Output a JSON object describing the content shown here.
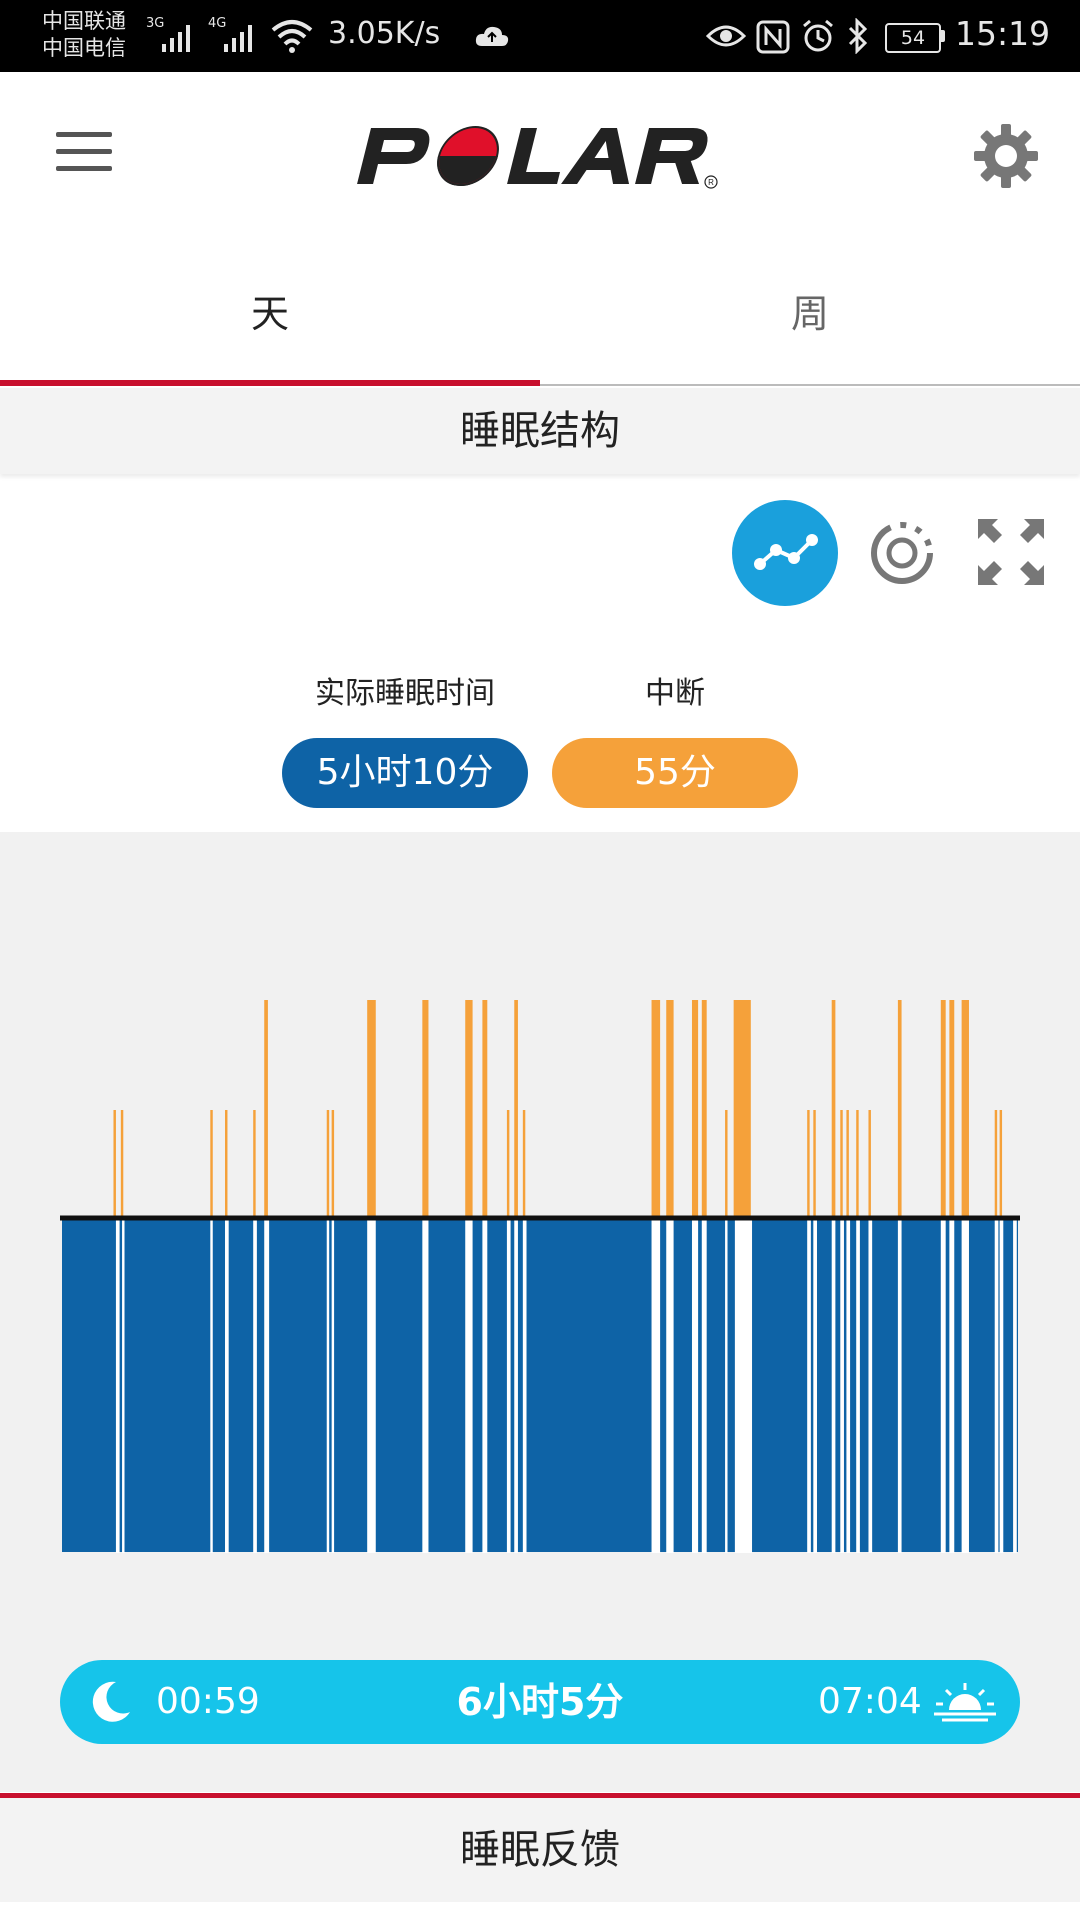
{
  "status_bar": {
    "carrier_1": "中国联通",
    "carrier_2": "中国电信",
    "net_1": "3G",
    "net_2": "4G",
    "speed": "3.05K/s",
    "battery": "54",
    "time": "15:19"
  },
  "header": {
    "logo": "POLAR",
    "menu_icon": "hamburger-menu-icon",
    "settings_icon": "gear-icon"
  },
  "tabs": [
    {
      "label": "天",
      "active": true
    },
    {
      "label": "周",
      "active": false
    }
  ],
  "section_title": "睡眠结构",
  "view_controls": [
    "graph-view-icon",
    "circle-view-icon",
    "fullscreen-icon"
  ],
  "summary": {
    "actual_sleep_label": "实际睡眠时间",
    "actual_sleep_value": "5小时10分",
    "interruption_label": "中断",
    "interruption_value": "55分"
  },
  "chart_data": {
    "type": "bar",
    "x_domain": [
      0,
      780
    ],
    "sleep_color": "#0e63a6",
    "interruption_color": "#f5a13a",
    "interruptions": [
      {
        "x": 42,
        "w": 2,
        "level": 1
      },
      {
        "x": 48,
        "w": 2,
        "level": 1
      },
      {
        "x": 121,
        "w": 2,
        "level": 1
      },
      {
        "x": 133,
        "w": 2,
        "level": 1
      },
      {
        "x": 156,
        "w": 2,
        "level": 1
      },
      {
        "x": 165,
        "w": 3,
        "level": 2
      },
      {
        "x": 216,
        "w": 2,
        "level": 1
      },
      {
        "x": 220,
        "w": 2,
        "level": 1
      },
      {
        "x": 249,
        "w": 7,
        "level": 2
      },
      {
        "x": 294,
        "w": 5,
        "level": 2
      },
      {
        "x": 329,
        "w": 6,
        "level": 2
      },
      {
        "x": 343,
        "w": 4,
        "level": 2
      },
      {
        "x": 363,
        "w": 2,
        "level": 1
      },
      {
        "x": 369,
        "w": 3,
        "level": 2
      },
      {
        "x": 376,
        "w": 2,
        "level": 1
      },
      {
        "x": 481,
        "w": 7,
        "level": 2
      },
      {
        "x": 493,
        "w": 6,
        "level": 2
      },
      {
        "x": 514,
        "w": 5,
        "level": 2
      },
      {
        "x": 522,
        "w": 4,
        "level": 2
      },
      {
        "x": 541,
        "w": 2,
        "level": 1
      },
      {
        "x": 548,
        "w": 14,
        "level": 2
      },
      {
        "x": 608,
        "w": 2,
        "level": 1
      },
      {
        "x": 613,
        "w": 2,
        "level": 1
      },
      {
        "x": 628,
        "w": 3,
        "level": 2
      },
      {
        "x": 635,
        "w": 2,
        "level": 1
      },
      {
        "x": 640,
        "w": 2,
        "level": 1
      },
      {
        "x": 648,
        "w": 2,
        "level": 1
      },
      {
        "x": 658,
        "w": 2,
        "level": 1
      },
      {
        "x": 682,
        "w": 3,
        "level": 2
      },
      {
        "x": 717,
        "w": 4,
        "level": 2
      },
      {
        "x": 724,
        "w": 4,
        "level": 2
      },
      {
        "x": 734,
        "w": 6,
        "level": 2
      },
      {
        "x": 761,
        "w": 2,
        "level": 1
      },
      {
        "x": 765,
        "w": 2,
        "level": 1
      }
    ],
    "sleep_gaps": [
      {
        "x": 44,
        "w": 3
      },
      {
        "x": 49,
        "w": 2
      },
      {
        "x": 121,
        "w": 2
      },
      {
        "x": 133,
        "w": 3
      },
      {
        "x": 156,
        "w": 3
      },
      {
        "x": 165,
        "w": 4
      },
      {
        "x": 216,
        "w": 2
      },
      {
        "x": 220,
        "w": 2
      },
      {
        "x": 249,
        "w": 7
      },
      {
        "x": 294,
        "w": 5
      },
      {
        "x": 329,
        "w": 6
      },
      {
        "x": 343,
        "w": 4
      },
      {
        "x": 363,
        "w": 3
      },
      {
        "x": 369,
        "w": 3
      },
      {
        "x": 376,
        "w": 3
      },
      {
        "x": 481,
        "w": 7
      },
      {
        "x": 493,
        "w": 6
      },
      {
        "x": 514,
        "w": 5
      },
      {
        "x": 522,
        "w": 4
      },
      {
        "x": 541,
        "w": 2
      },
      {
        "x": 549,
        "w": 14
      },
      {
        "x": 608,
        "w": 3
      },
      {
        "x": 613,
        "w": 3
      },
      {
        "x": 628,
        "w": 3
      },
      {
        "x": 635,
        "w": 3
      },
      {
        "x": 640,
        "w": 3
      },
      {
        "x": 648,
        "w": 3
      },
      {
        "x": 658,
        "w": 3
      },
      {
        "x": 682,
        "w": 3
      },
      {
        "x": 717,
        "w": 4
      },
      {
        "x": 724,
        "w": 4
      },
      {
        "x": 734,
        "w": 6
      },
      {
        "x": 761,
        "w": 3
      },
      {
        "x": 765,
        "w": 3
      },
      {
        "x": 776,
        "w": 3
      }
    ]
  },
  "timeline": {
    "start": "00:59",
    "duration": "6小时5分",
    "end": "07:04",
    "start_icon": "moon-icon",
    "end_icon": "sunrise-icon"
  },
  "bottom_section_title": "睡眠反馈"
}
